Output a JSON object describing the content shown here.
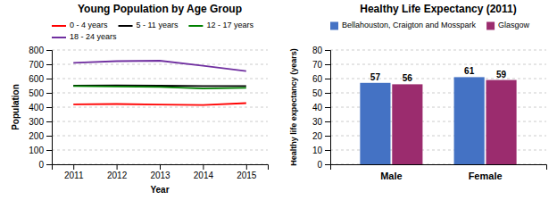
{
  "chart_data": [
    {
      "type": "line",
      "title": "Young Population by Age Group",
      "xlabel": "Year",
      "ylabel": "Population",
      "x": [
        2011,
        2012,
        2013,
        2014,
        2015
      ],
      "series": [
        {
          "name": "0 - 4 years",
          "color": "#ff0000",
          "values": [
            420,
            422,
            418,
            415,
            428
          ]
        },
        {
          "name": "5 - 11 years",
          "color": "#000000",
          "values": [
            550,
            552,
            550,
            548,
            548
          ]
        },
        {
          "name": "12 - 17 years",
          "color": "#008000",
          "values": [
            548,
            545,
            542,
            530,
            535
          ]
        },
        {
          "name": "18 - 24 years",
          "color": "#7030a0",
          "values": [
            710,
            722,
            725,
            690,
            653
          ]
        }
      ],
      "xlim": [
        2010.5,
        2015.5
      ],
      "xticks": [
        2011,
        2012,
        2013,
        2014,
        2015
      ],
      "ylim": [
        0,
        800
      ],
      "yticks": [
        0,
        100,
        200,
        300,
        400,
        500,
        600,
        700,
        800
      ],
      "grid": true,
      "legend": "top"
    },
    {
      "type": "bar",
      "title": "Healthy Life Expectancy (2011)",
      "ylabel": "Healthy life expectancy (years)",
      "categories": [
        "Male",
        "Female"
      ],
      "series": [
        {
          "name": "Bellahouston, Craigton and Mosspark",
          "color": "#4472c4",
          "values": [
            57,
            61
          ]
        },
        {
          "name": "Glasgow",
          "color": "#9b2c6e",
          "values": [
            56,
            59
          ]
        }
      ],
      "ylim": [
        0,
        80
      ],
      "yticks": [
        0,
        10,
        20,
        30,
        40,
        50,
        60,
        70,
        80
      ],
      "grid": true,
      "legend": "top",
      "data_labels": true
    }
  ]
}
